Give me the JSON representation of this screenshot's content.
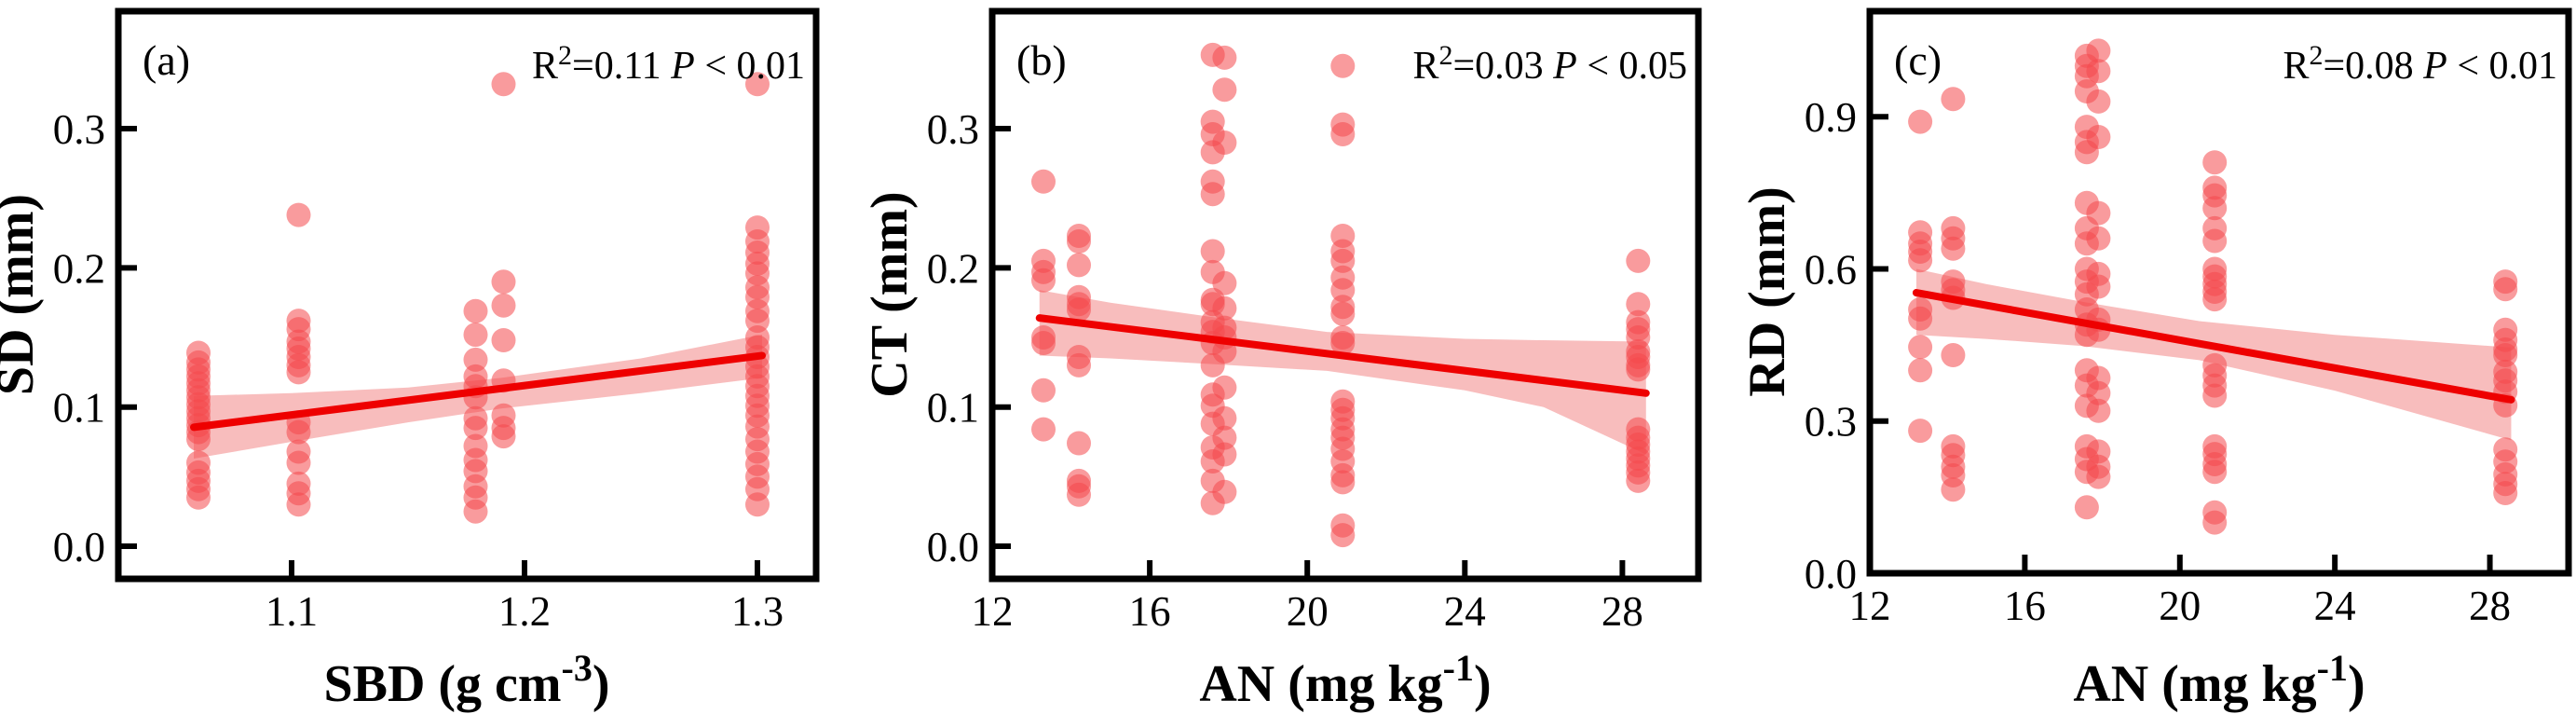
{
  "figure": {
    "background": "#ffffff"
  },
  "style": {
    "point_color": "#f4484c",
    "point_opacity": 0.55,
    "line_color": "#ee0000",
    "band_color": "#f7b6b6",
    "band_opacity": 0.9,
    "axis_color": "#000000"
  },
  "chart_data": [
    {
      "type": "scatter",
      "panel_label": "(a)",
      "annotation": {
        "r_base": "R",
        "r_sup": "2",
        "r_value": "=0.11 ",
        "p_var": "P",
        "p_value": " < 0.01"
      },
      "xlabel": {
        "prefix": "SBD (g cm",
        "sup": "-3",
        "suffix": ")"
      },
      "ylabel": "SD (mm)",
      "xlim": [
        1.0256,
        1.3252
      ],
      "ylim": [
        -0.0234,
        0.3844
      ],
      "xticks": [
        1.1,
        1.2,
        1.3
      ],
      "xtick_labels": [
        "1.1",
        "1.2",
        "1.3"
      ],
      "yticks": [
        0.0,
        0.1,
        0.2,
        0.3
      ],
      "ytick_labels": [
        "0.0",
        "0.1",
        "0.2",
        "0.3"
      ],
      "grid": false,
      "regression": {
        "x": [
          1.058,
          1.302
        ],
        "y": [
          0.0855,
          0.137
        ]
      },
      "band": {
        "x": [
          1.058,
          1.1,
          1.15,
          1.19,
          1.25,
          1.302
        ],
        "upper": [
          0.108,
          0.11,
          0.114,
          0.121,
          0.135,
          0.152
        ],
        "lower": [
          0.063,
          0.075,
          0.089,
          0.099,
          0.11,
          0.121
        ]
      },
      "points": [
        [
          1.06,
          0.139
        ],
        [
          1.06,
          0.132
        ],
        [
          1.06,
          0.127
        ],
        [
          1.06,
          0.122
        ],
        [
          1.06,
          0.117
        ],
        [
          1.06,
          0.112
        ],
        [
          1.06,
          0.107
        ],
        [
          1.06,
          0.102
        ],
        [
          1.06,
          0.097
        ],
        [
          1.06,
          0.092
        ],
        [
          1.06,
          0.087
        ],
        [
          1.06,
          0.082
        ],
        [
          1.06,
          0.077
        ],
        [
          1.06,
          0.06
        ],
        [
          1.06,
          0.053
        ],
        [
          1.06,
          0.047
        ],
        [
          1.06,
          0.041
        ],
        [
          1.06,
          0.035
        ],
        [
          1.103,
          0.238
        ],
        [
          1.103,
          0.162
        ],
        [
          1.103,
          0.156
        ],
        [
          1.103,
          0.147
        ],
        [
          1.103,
          0.142
        ],
        [
          1.103,
          0.136
        ],
        [
          1.103,
          0.13
        ],
        [
          1.103,
          0.125
        ],
        [
          1.103,
          0.089
        ],
        [
          1.103,
          0.082
        ],
        [
          1.103,
          0.068
        ],
        [
          1.103,
          0.06
        ],
        [
          1.103,
          0.045
        ],
        [
          1.103,
          0.038
        ],
        [
          1.103,
          0.03
        ],
        [
          1.179,
          0.169
        ],
        [
          1.179,
          0.152
        ],
        [
          1.179,
          0.134
        ],
        [
          1.179,
          0.122
        ],
        [
          1.179,
          0.115
        ],
        [
          1.179,
          0.107
        ],
        [
          1.179,
          0.092
        ],
        [
          1.179,
          0.085
        ],
        [
          1.179,
          0.072
        ],
        [
          1.179,
          0.062
        ],
        [
          1.179,
          0.054
        ],
        [
          1.179,
          0.043
        ],
        [
          1.179,
          0.035
        ],
        [
          1.179,
          0.025
        ],
        [
          1.191,
          0.332
        ],
        [
          1.191,
          0.19
        ],
        [
          1.191,
          0.173
        ],
        [
          1.191,
          0.148
        ],
        [
          1.191,
          0.119
        ],
        [
          1.191,
          0.094
        ],
        [
          1.191,
          0.085
        ],
        [
          1.191,
          0.079
        ],
        [
          1.3,
          0.332
        ],
        [
          1.3,
          0.229
        ],
        [
          1.3,
          0.219
        ],
        [
          1.3,
          0.211
        ],
        [
          1.3,
          0.203
        ],
        [
          1.3,
          0.196
        ],
        [
          1.3,
          0.186
        ],
        [
          1.3,
          0.179
        ],
        [
          1.3,
          0.169
        ],
        [
          1.3,
          0.162
        ],
        [
          1.3,
          0.15
        ],
        [
          1.3,
          0.143
        ],
        [
          1.3,
          0.136
        ],
        [
          1.3,
          0.129
        ],
        [
          1.3,
          0.122
        ],
        [
          1.3,
          0.115
        ],
        [
          1.3,
          0.108
        ],
        [
          1.3,
          0.101
        ],
        [
          1.3,
          0.094
        ],
        [
          1.3,
          0.086
        ],
        [
          1.3,
          0.077
        ],
        [
          1.3,
          0.068
        ],
        [
          1.3,
          0.059
        ],
        [
          1.3,
          0.05
        ],
        [
          1.3,
          0.041
        ],
        [
          1.3,
          0.03
        ]
      ]
    },
    {
      "type": "scatter",
      "panel_label": "(b)",
      "annotation": {
        "r_base": "R",
        "r_sup": "2",
        "r_value": "=0.03 ",
        "p_var": "P",
        "p_value": " < 0.05"
      },
      "xlabel": {
        "prefix": "AN (mg kg",
        "sup": "-1",
        "suffix": ")"
      },
      "ylabel": "CT (mm)",
      "xlim": [
        12,
        29.93
      ],
      "ylim": [
        -0.0234,
        0.3844
      ],
      "xticks": [
        12,
        16,
        20,
        24,
        28
      ],
      "xtick_labels": [
        "12",
        "16",
        "20",
        "24",
        "28"
      ],
      "yticks": [
        0.0,
        0.1,
        0.2,
        0.3
      ],
      "ytick_labels": [
        "0.0",
        "0.1",
        "0.2",
        "0.3"
      ],
      "grid": false,
      "regression": {
        "x": [
          13.2,
          28.6
        ],
        "y": [
          0.164,
          0.11
        ]
      },
      "band": {
        "x": [
          13.2,
          15,
          17.5,
          20.5,
          24,
          26,
          28.6
        ],
        "upper": [
          0.184,
          0.175,
          0.165,
          0.154,
          0.149,
          0.148,
          0.147
        ],
        "lower": [
          0.137,
          0.135,
          0.131,
          0.126,
          0.112,
          0.1,
          0.066
        ]
      },
      "points": [
        [
          13.3,
          0.262
        ],
        [
          13.3,
          0.205
        ],
        [
          13.3,
          0.197
        ],
        [
          13.3,
          0.191
        ],
        [
          13.3,
          0.15
        ],
        [
          13.3,
          0.146
        ],
        [
          13.3,
          0.112
        ],
        [
          13.3,
          0.084
        ],
        [
          14.2,
          0.223
        ],
        [
          14.2,
          0.219
        ],
        [
          14.2,
          0.202
        ],
        [
          14.2,
          0.179
        ],
        [
          14.2,
          0.174
        ],
        [
          14.2,
          0.17
        ],
        [
          14.2,
          0.136
        ],
        [
          14.2,
          0.13
        ],
        [
          14.2,
          0.074
        ],
        [
          14.2,
          0.047
        ],
        [
          14.2,
          0.043
        ],
        [
          14.2,
          0.037
        ],
        [
          17.6,
          0.353
        ],
        [
          17.6,
          0.305
        ],
        [
          17.6,
          0.296
        ],
        [
          17.6,
          0.283
        ],
        [
          17.6,
          0.262
        ],
        [
          17.6,
          0.253
        ],
        [
          17.6,
          0.212
        ],
        [
          17.6,
          0.197
        ],
        [
          17.6,
          0.177
        ],
        [
          17.6,
          0.174
        ],
        [
          17.6,
          0.161
        ],
        [
          17.6,
          0.154
        ],
        [
          17.6,
          0.146
        ],
        [
          17.6,
          0.13
        ],
        [
          17.6,
          0.109
        ],
        [
          17.6,
          0.101
        ],
        [
          17.6,
          0.088
        ],
        [
          17.6,
          0.071
        ],
        [
          17.6,
          0.061
        ],
        [
          17.6,
          0.047
        ],
        [
          17.6,
          0.031
        ],
        [
          17.9,
          0.351
        ],
        [
          17.9,
          0.328
        ],
        [
          17.9,
          0.29
        ],
        [
          17.9,
          0.189
        ],
        [
          17.9,
          0.171
        ],
        [
          17.9,
          0.157
        ],
        [
          17.9,
          0.15
        ],
        [
          17.9,
          0.14
        ],
        [
          17.9,
          0.114
        ],
        [
          17.9,
          0.092
        ],
        [
          17.9,
          0.078
        ],
        [
          17.9,
          0.066
        ],
        [
          17.9,
          0.039
        ],
        [
          20.9,
          0.345
        ],
        [
          20.9,
          0.303
        ],
        [
          20.9,
          0.296
        ],
        [
          20.9,
          0.223
        ],
        [
          20.9,
          0.212
        ],
        [
          20.9,
          0.205
        ],
        [
          20.9,
          0.193
        ],
        [
          20.9,
          0.184
        ],
        [
          20.9,
          0.172
        ],
        [
          20.9,
          0.167
        ],
        [
          20.9,
          0.15
        ],
        [
          20.9,
          0.146
        ],
        [
          20.9,
          0.104
        ],
        [
          20.9,
          0.098
        ],
        [
          20.9,
          0.092
        ],
        [
          20.9,
          0.084
        ],
        [
          20.9,
          0.078
        ],
        [
          20.9,
          0.07
        ],
        [
          20.9,
          0.061
        ],
        [
          20.9,
          0.051
        ],
        [
          20.9,
          0.046
        ],
        [
          20.9,
          0.015
        ],
        [
          20.9,
          0.008
        ],
        [
          28.4,
          0.205
        ],
        [
          28.4,
          0.174
        ],
        [
          28.4,
          0.161
        ],
        [
          28.4,
          0.156
        ],
        [
          28.4,
          0.15
        ],
        [
          28.4,
          0.14
        ],
        [
          28.4,
          0.136
        ],
        [
          28.4,
          0.13
        ],
        [
          28.4,
          0.127
        ],
        [
          28.4,
          0.084
        ],
        [
          28.4,
          0.078
        ],
        [
          28.4,
          0.073
        ],
        [
          28.4,
          0.068
        ],
        [
          28.4,
          0.063
        ],
        [
          28.4,
          0.058
        ],
        [
          28.4,
          0.053
        ],
        [
          28.4,
          0.047
        ]
      ]
    },
    {
      "type": "scatter",
      "panel_label": "(c)",
      "annotation": {
        "r_base": "R",
        "r_sup": "2",
        "r_value": "=0.08 ",
        "p_var": "P",
        "p_value": " < 0.01"
      },
      "xlabel": {
        "prefix": "AN (mg kg",
        "sup": "-1",
        "suffix": ")"
      },
      "ylabel": "RD (mm)",
      "xlim": [
        12,
        30.03
      ],
      "ylim": [
        0,
        1.108
      ],
      "xticks": [
        12,
        16,
        20,
        24,
        28
      ],
      "xtick_labels": [
        "12",
        "16",
        "20",
        "24",
        "28"
      ],
      "yticks": [
        0.0,
        0.3,
        0.6,
        0.9
      ],
      "ytick_labels": [
        "0.0",
        "0.3",
        "0.6",
        "0.9"
      ],
      "grid": false,
      "regression": {
        "x": [
          13.2,
          28.55
        ],
        "y": [
          0.553,
          0.342
        ]
      },
      "band": {
        "x": [
          13.2,
          15,
          17.5,
          20.5,
          24,
          28.55
        ],
        "upper": [
          0.6,
          0.57,
          0.535,
          0.497,
          0.47,
          0.445
        ],
        "lower": [
          0.47,
          0.462,
          0.448,
          0.42,
          0.36,
          0.262
        ]
      },
      "points": [
        [
          13.3,
          0.89
        ],
        [
          13.3,
          0.672
        ],
        [
          13.3,
          0.65
        ],
        [
          13.3,
          0.634
        ],
        [
          13.3,
          0.617
        ],
        [
          13.3,
          0.52
        ],
        [
          13.3,
          0.502
        ],
        [
          13.3,
          0.446
        ],
        [
          13.3,
          0.4
        ],
        [
          13.3,
          0.281
        ],
        [
          14.15,
          0.935
        ],
        [
          14.15,
          0.68
        ],
        [
          14.15,
          0.66
        ],
        [
          14.15,
          0.64
        ],
        [
          14.15,
          0.575
        ],
        [
          14.15,
          0.558
        ],
        [
          14.15,
          0.543
        ],
        [
          14.15,
          0.43
        ],
        [
          14.15,
          0.25
        ],
        [
          14.15,
          0.233
        ],
        [
          14.15,
          0.21
        ],
        [
          14.15,
          0.193
        ],
        [
          14.15,
          0.165
        ],
        [
          17.6,
          1.02
        ],
        [
          17.6,
          1.0
        ],
        [
          17.6,
          0.98
        ],
        [
          17.6,
          0.95
        ],
        [
          17.6,
          0.88
        ],
        [
          17.6,
          0.85
        ],
        [
          17.6,
          0.83
        ],
        [
          17.6,
          0.73
        ],
        [
          17.6,
          0.68
        ],
        [
          17.6,
          0.65
        ],
        [
          17.6,
          0.6
        ],
        [
          17.6,
          0.575
        ],
        [
          17.6,
          0.55
        ],
        [
          17.6,
          0.52
        ],
        [
          17.6,
          0.49
        ],
        [
          17.6,
          0.47
        ],
        [
          17.6,
          0.4
        ],
        [
          17.6,
          0.37
        ],
        [
          17.6,
          0.33
        ],
        [
          17.6,
          0.25
        ],
        [
          17.6,
          0.225
        ],
        [
          17.6,
          0.2
        ],
        [
          17.6,
          0.13
        ],
        [
          17.9,
          1.03
        ],
        [
          17.9,
          0.99
        ],
        [
          17.9,
          0.93
        ],
        [
          17.9,
          0.86
        ],
        [
          17.9,
          0.71
        ],
        [
          17.9,
          0.66
        ],
        [
          17.9,
          0.59
        ],
        [
          17.9,
          0.565
        ],
        [
          17.9,
          0.5
        ],
        [
          17.9,
          0.48
        ],
        [
          17.9,
          0.385
        ],
        [
          17.9,
          0.355
        ],
        [
          17.9,
          0.32
        ],
        [
          17.9,
          0.24
        ],
        [
          17.9,
          0.21
        ],
        [
          17.9,
          0.19
        ],
        [
          20.9,
          0.81
        ],
        [
          20.9,
          0.76
        ],
        [
          20.9,
          0.745
        ],
        [
          20.9,
          0.72
        ],
        [
          20.9,
          0.68
        ],
        [
          20.9,
          0.655
        ],
        [
          20.9,
          0.6
        ],
        [
          20.9,
          0.585
        ],
        [
          20.9,
          0.57
        ],
        [
          20.9,
          0.555
        ],
        [
          20.9,
          0.54
        ],
        [
          20.9,
          0.41
        ],
        [
          20.9,
          0.39
        ],
        [
          20.9,
          0.37
        ],
        [
          20.9,
          0.35
        ],
        [
          20.9,
          0.25
        ],
        [
          20.9,
          0.235
        ],
        [
          20.9,
          0.215
        ],
        [
          20.9,
          0.2
        ],
        [
          20.9,
          0.12
        ],
        [
          20.9,
          0.1
        ],
        [
          28.4,
          0.575
        ],
        [
          28.4,
          0.56
        ],
        [
          28.4,
          0.48
        ],
        [
          28.4,
          0.46
        ],
        [
          28.4,
          0.441
        ],
        [
          28.4,
          0.43
        ],
        [
          28.4,
          0.397
        ],
        [
          28.4,
          0.38
        ],
        [
          28.4,
          0.358
        ],
        [
          28.4,
          0.331
        ],
        [
          28.4,
          0.244
        ],
        [
          28.4,
          0.22
        ],
        [
          28.4,
          0.195
        ],
        [
          28.4,
          0.176
        ],
        [
          28.4,
          0.158
        ]
      ]
    }
  ]
}
